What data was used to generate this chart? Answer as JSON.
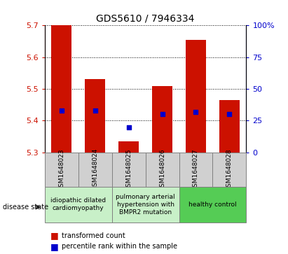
{
  "title": "GDS5610 / 7946334",
  "samples": [
    "GSM1648023",
    "GSM1648024",
    "GSM1648025",
    "GSM1648026",
    "GSM1648027",
    "GSM1648028"
  ],
  "transformed_count": [
    5.7,
    5.53,
    5.335,
    5.51,
    5.655,
    5.465
  ],
  "percentile_rank": [
    33.0,
    33.0,
    20.0,
    30.0,
    32.0,
    30.0
  ],
  "ylim_left": [
    5.3,
    5.7
  ],
  "ylim_right": [
    0,
    100
  ],
  "yticks_left": [
    5.3,
    5.4,
    5.5,
    5.6,
    5.7
  ],
  "yticks_right": [
    0,
    25,
    50,
    75,
    100
  ],
  "disease_groups": [
    {
      "label": "idiopathic dilated\ncardiomyopathy",
      "cols": [
        0,
        1
      ],
      "color": "#c8f0c8"
    },
    {
      "label": "pulmonary arterial\nhypertension with\nBMPR2 mutation",
      "cols": [
        2,
        3
      ],
      "color": "#c8f0c8"
    },
    {
      "label": "healthy control",
      "cols": [
        4,
        5
      ],
      "color": "#55cc55"
    }
  ],
  "bar_color": "#cc1100",
  "blue_color": "#0000cc",
  "bar_bottom": 5.3,
  "bar_width": 0.6
}
